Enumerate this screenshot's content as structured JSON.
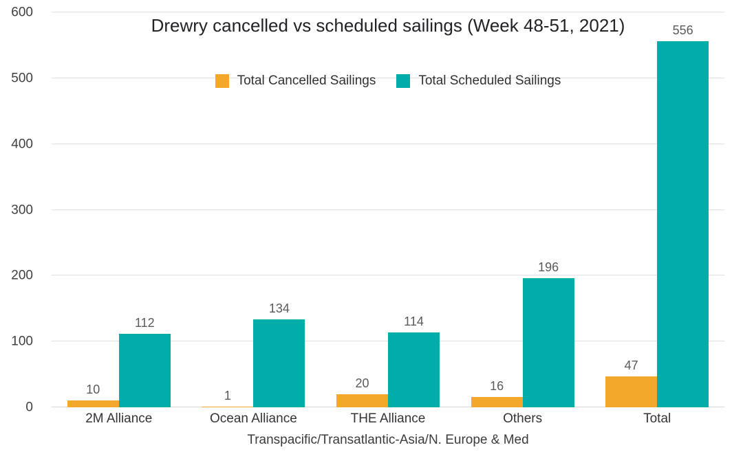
{
  "chart": {
    "title": "Drewry cancelled vs scheduled sailings (Week 48-51, 2021)"
  },
  "chart_data": {
    "type": "bar",
    "title": "Drewry cancelled vs scheduled sailings (Week 48-51, 2021)",
    "categories": [
      "2M Alliance",
      "Ocean Alliance",
      "THE Alliance",
      "Others",
      "Total"
    ],
    "series": [
      {
        "name": "Total Cancelled Sailings",
        "color": "#f3a82b",
        "values": [
          10,
          1,
          20,
          16,
          47
        ]
      },
      {
        "name": "Total Scheduled Sailings",
        "color": "#00ada8",
        "values": [
          112,
          134,
          114,
          196,
          556
        ]
      }
    ],
    "xlabel": "Transpacific/Transatlantic-Asia/N. Europe & Med",
    "ylabel": "",
    "ylim": [
      0,
      600
    ],
    "yticks": [
      0,
      100,
      200,
      300,
      400,
      500,
      600
    ],
    "grid": true,
    "legend_position": "top-center",
    "value_labels_shown": true
  },
  "colors": {
    "background": "#ffffff",
    "cancelled_orange": "#f3a82b",
    "scheduled_teal": "#00ada8",
    "gridline": "#e0e0e0",
    "title_text": "#212327",
    "tick_text": "#3e4042",
    "value_label_text": "#595a5c"
  }
}
